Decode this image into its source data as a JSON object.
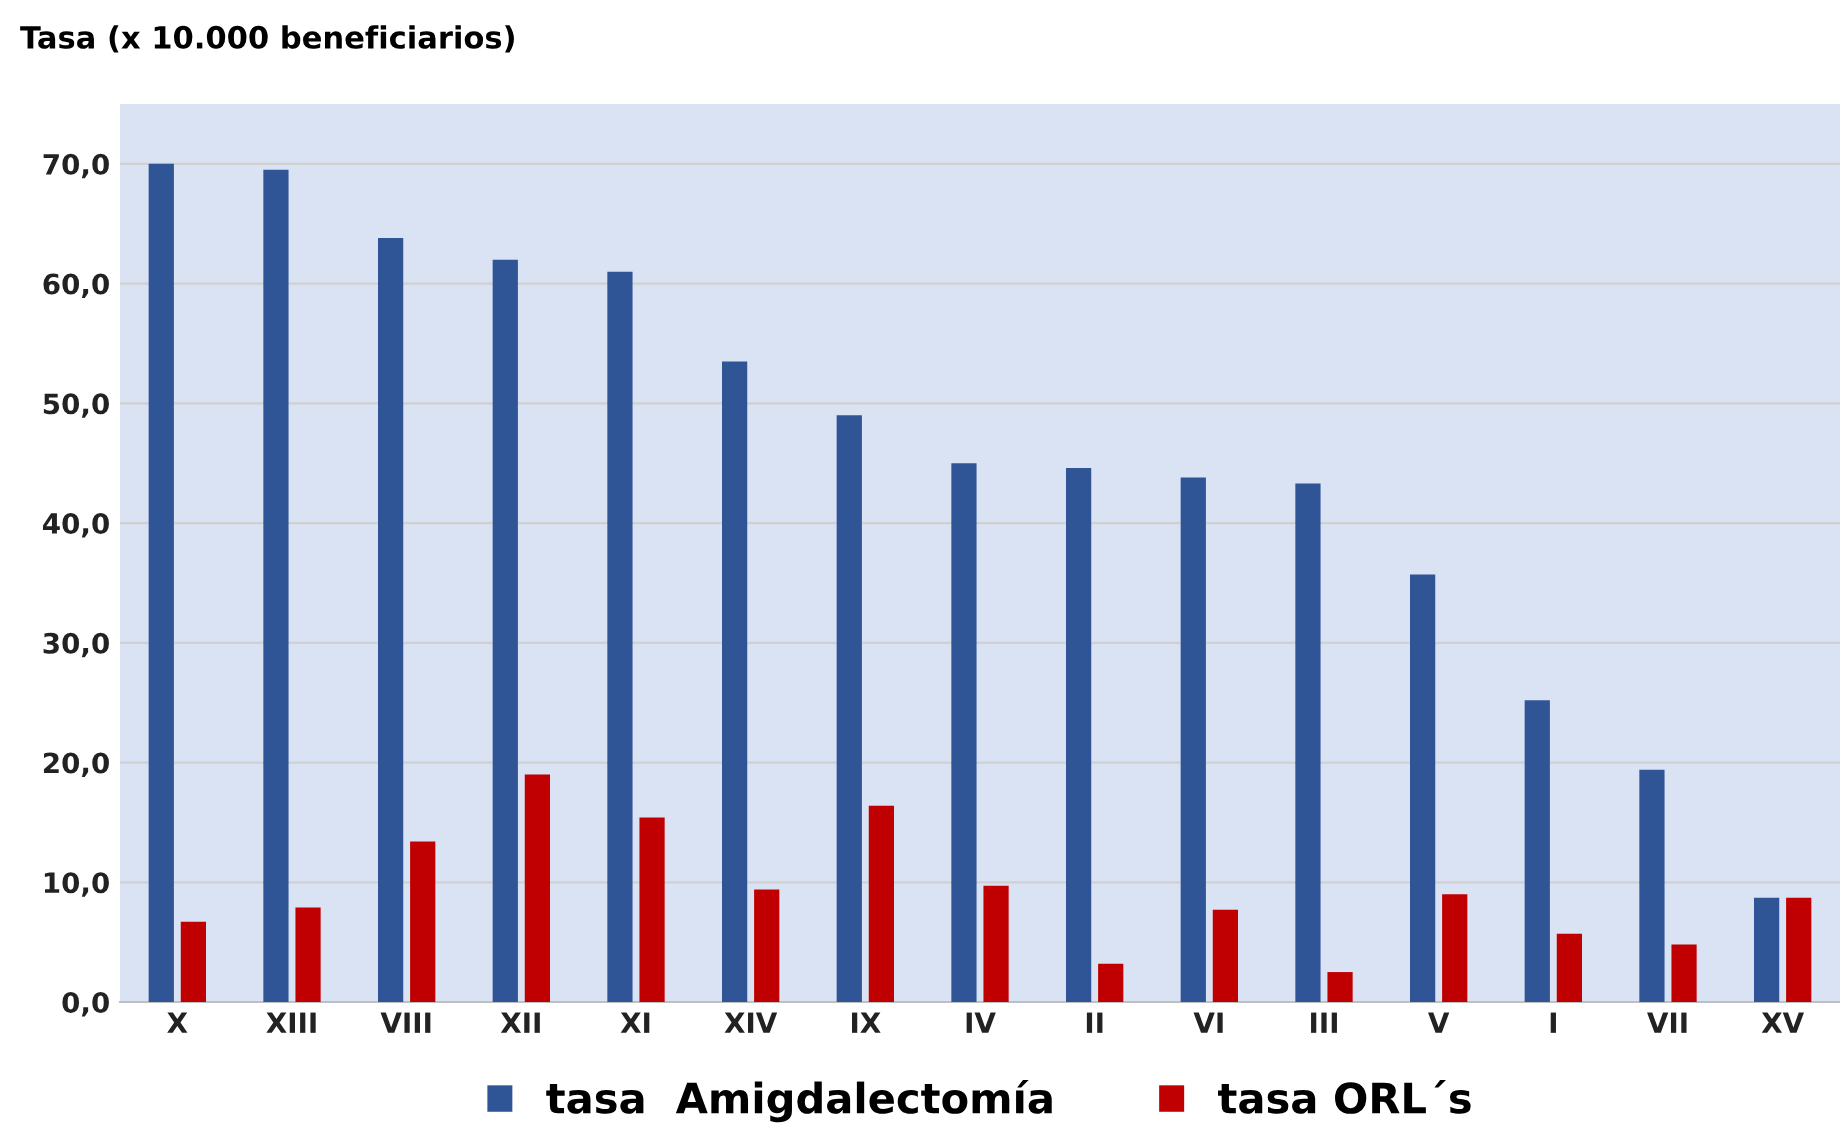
{
  "chart_data": {
    "type": "bar",
    "title": "Tasa (x 10.000 beneficiarios)",
    "categories": [
      "X",
      "XIII",
      "VIII",
      "XII",
      "XI",
      "XIV",
      "IX",
      "IV",
      "II",
      "VI",
      "III",
      "V",
      "I",
      "VII",
      "XV"
    ],
    "series": [
      {
        "name": "tasa  Amigdalectomía",
        "color": "#2f5597",
        "values": [
          70.0,
          69.5,
          63.8,
          62.0,
          61.0,
          53.5,
          49.0,
          45.0,
          44.6,
          43.8,
          43.3,
          35.7,
          25.2,
          19.4,
          8.7
        ]
      },
      {
        "name": "tasa ORL´s",
        "color": "#c00000",
        "values": [
          6.7,
          7.9,
          13.4,
          19.0,
          15.4,
          9.4,
          16.4,
          9.7,
          3.2,
          7.7,
          2.5,
          9.0,
          5.7,
          4.8,
          8.7
        ]
      }
    ],
    "ylim": [
      0,
      75
    ],
    "yticks": [
      {
        "value": 0,
        "label": "0,0"
      },
      {
        "value": 10,
        "label": "10,0"
      },
      {
        "value": 20,
        "label": "20,0"
      },
      {
        "value": 30,
        "label": "30,0"
      },
      {
        "value": 40,
        "label": "40,0"
      },
      {
        "value": 50,
        "label": "50,0"
      },
      {
        "value": 60,
        "label": "60,0"
      },
      {
        "value": 70,
        "label": "70,0"
      }
    ],
    "grid": "y",
    "legend": "bottom"
  }
}
